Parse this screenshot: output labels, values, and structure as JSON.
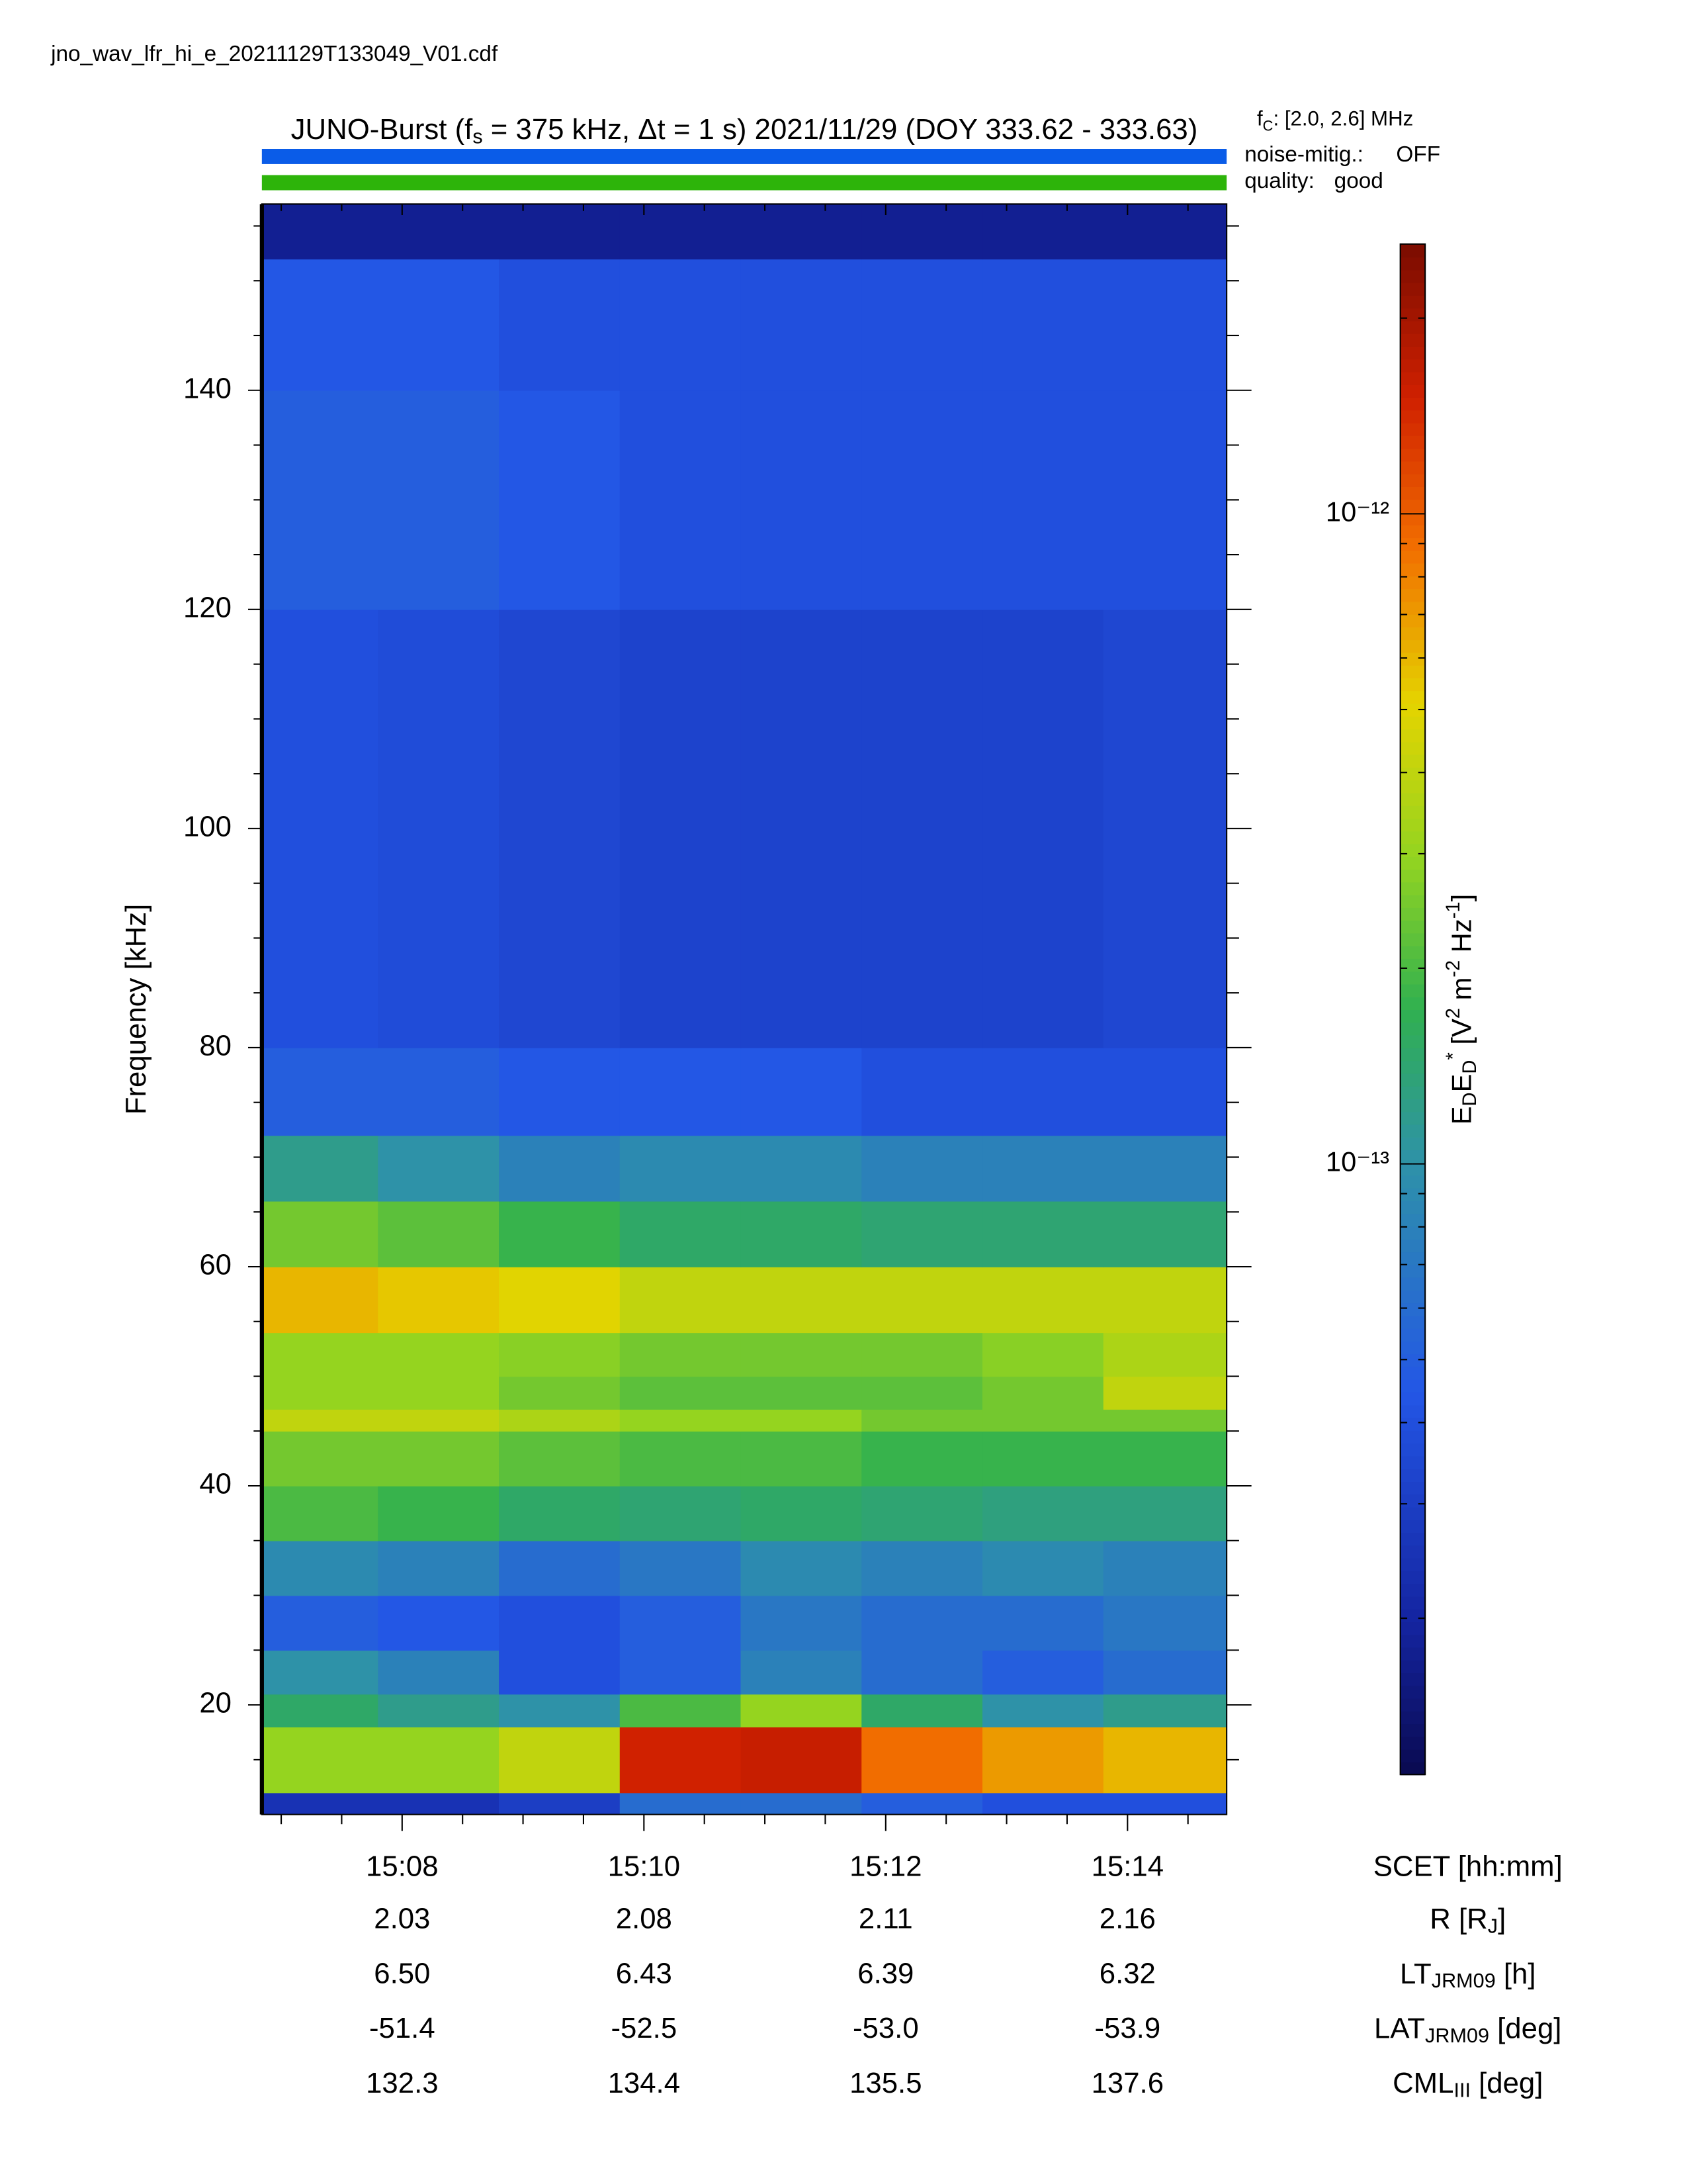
{
  "chart_data": {
    "type": "heatmap",
    "filename": "jno_wav_lfr_hi_e_20211129T133049_V01.cdf",
    "title": [
      "JUNO-Burst (f",
      "s",
      " = 375 kHz, Δt = 1 s)  2021/11/29 (DOY 333.62 - 333.63)"
    ],
    "fc": [
      "f",
      "C",
      ": [2.0, 2.6] MHz"
    ],
    "noise_label": "noise-mitig.:",
    "noise_value": "OFF",
    "noise_color": "#0a5ce8",
    "quality_label": "quality:",
    "quality_value": "good",
    "quality_color": "#2db40a",
    "y_label": "Frequency [kHz]",
    "x_label": "SCET [hh:mm]",
    "colorbar_label": [
      "E",
      "D",
      "E",
      "D",
      "*",
      " [V",
      "2",
      " m",
      "-2",
      " Hz",
      "-1",
      "]"
    ],
    "xlim": [
      6.84,
      14.82
    ],
    "xticks": [
      {
        "value": 8,
        "label": "15:08"
      },
      {
        "value": 10,
        "label": "15:10"
      },
      {
        "value": 12,
        "label": "15:12"
      },
      {
        "value": 14,
        "label": "15:14"
      }
    ],
    "xticks_minor": [
      7,
      7.5,
      8.5,
      9,
      9.5,
      10.5,
      11,
      11.5,
      12.5,
      13,
      13.5,
      14.5
    ],
    "ylim": [
      10,
      157
    ],
    "yticks": [
      20,
      40,
      60,
      80,
      100,
      120,
      140
    ],
    "yticks_minor": [
      15,
      25,
      30,
      35,
      45,
      50,
      55,
      65,
      70,
      75,
      85,
      90,
      95,
      105,
      110,
      115,
      125,
      130,
      135,
      145,
      150,
      155
    ],
    "clim": [
      1.15e-14,
      2.6e-12
    ],
    "color_scale": "log",
    "cticks": [
      {
        "value": 1e-13,
        "label": "10⁻¹³"
      },
      {
        "value": 1e-12,
        "label": "10⁻¹²"
      }
    ],
    "x_edges": [
      6.84,
      7.8,
      8.8,
      9.8,
      10.8,
      11.8,
      12.8,
      13.8,
      14.82
    ],
    "y_edges": [
      10,
      12,
      18,
      21,
      25,
      30,
      35,
      40,
      45,
      47,
      50,
      54,
      60,
      66,
      72,
      80,
      100,
      120,
      140,
      152,
      157
    ],
    "values": [
      [
        2.5e-14,
        2.5e-14,
        3e-14,
        6e-14,
        6e-14,
        5e-14,
        4e-14,
        4e-14
      ],
      [
        3e-13,
        3e-13,
        4e-13,
        1.5e-12,
        1.6e-12,
        9e-13,
        7e-13,
        6e-13
      ],
      [
        1.5e-13,
        1.2e-13,
        1e-13,
        2e-13,
        3e-13,
        1.5e-13,
        1e-13,
        1.2e-13
      ],
      [
        1e-13,
        8e-14,
        4e-14,
        5e-14,
        8e-14,
        6e-14,
        5e-14,
        6e-14
      ],
      [
        5e-14,
        4.5e-14,
        4e-14,
        5e-14,
        7e-14,
        6e-14,
        6e-14,
        7e-14
      ],
      [
        9e-14,
        8e-14,
        6e-14,
        7e-14,
        9e-14,
        8e-14,
        9e-14,
        8e-14
      ],
      [
        2e-13,
        1.8e-13,
        1.5e-13,
        1.4e-13,
        1.5e-13,
        1.4e-13,
        1.3e-13,
        1.3e-13
      ],
      [
        2.5e-13,
        2.5e-13,
        2.2e-13,
        2e-13,
        2e-13,
        1.8e-13,
        1.8e-13,
        1.8e-13
      ],
      [
        4e-13,
        4e-13,
        3.5e-13,
        3e-13,
        3e-13,
        2.5e-13,
        2.5e-13,
        2.5e-13
      ],
      [
        3e-13,
        3e-13,
        2.5e-13,
        2.2e-13,
        2.2e-13,
        2.2e-13,
        2.5e-13,
        4e-13
      ],
      [
        3e-13,
        3e-13,
        2.8e-13,
        2.5e-13,
        2.5e-13,
        2.5e-13,
        2.8e-13,
        3.5e-13
      ],
      [
        6e-13,
        5.5e-13,
        5e-13,
        4e-13,
        4e-13,
        4e-13,
        4e-13,
        4e-13
      ],
      [
        2.5e-13,
        2.2e-13,
        1.8e-13,
        1.5e-13,
        1.5e-13,
        1.4e-13,
        1.4e-13,
        1.4e-13
      ],
      [
        1.2e-13,
        1e-13,
        8e-14,
        9e-14,
        9e-14,
        8e-14,
        8e-14,
        8e-14
      ],
      [
        5e-14,
        5e-14,
        4.5e-14,
        4.5e-14,
        4.5e-14,
        4e-14,
        4e-14,
        4e-14
      ],
      [
        4e-14,
        3.8e-14,
        3.5e-14,
        3.3e-14,
        3.3e-14,
        3.3e-14,
        3.3e-14,
        3.5e-14
      ],
      [
        4e-14,
        3.8e-14,
        3.5e-14,
        3.3e-14,
        3.3e-14,
        3.3e-14,
        3.3e-14,
        3.5e-14
      ],
      [
        5e-14,
        5e-14,
        4.5e-14,
        4e-14,
        4e-14,
        4e-14,
        4e-14,
        4e-14
      ],
      [
        4.5e-14,
        4.5e-14,
        4e-14,
        4e-14,
        4e-14,
        4e-14,
        4e-14,
        4e-14
      ],
      [
        1.8e-14,
        1.8e-14,
        1.8e-14,
        1.8e-14,
        1.8e-14,
        1.8e-14,
        1.8e-14,
        1.8e-14
      ]
    ],
    "ephemeris": [
      {
        "label": [
          "R [R",
          "J",
          "]"
        ],
        "values": [
          "2.03",
          "2.08",
          "2.11",
          "2.16"
        ]
      },
      {
        "label": [
          "LT",
          "JRM09",
          " [h]"
        ],
        "values": [
          "6.50",
          "6.43",
          "6.39",
          "6.32"
        ]
      },
      {
        "label": [
          "LAT",
          "JRM09",
          " [deg]"
        ],
        "values": [
          "-51.4",
          "-52.5",
          "-53.0",
          "-53.9"
        ]
      },
      {
        "label": [
          "CML",
          "III",
          " [deg]"
        ],
        "values": [
          "132.3",
          "134.4",
          "135.5",
          "137.6"
        ]
      }
    ]
  }
}
